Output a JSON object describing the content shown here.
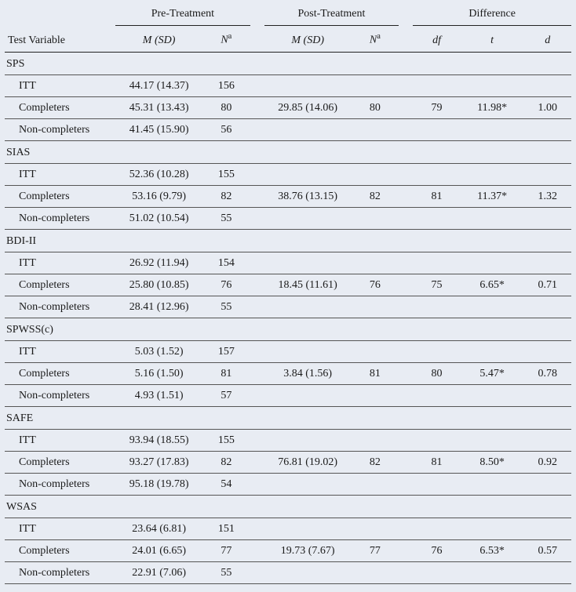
{
  "background_color": "#e8ecf3",
  "text_color": "#1a1a1a",
  "border_color": "#222222",
  "row_border_color": "#555555",
  "font_family": "Times New Roman",
  "font_size_pt": 11,
  "headers": {
    "test_variable": "Test Variable",
    "pre_treatment": "Pre-Treatment",
    "post_treatment": "Post-Treatment",
    "difference": "Difference",
    "m_sd_html": "M (SD)",
    "n_sup": "N",
    "n_sup_a": "a",
    "df": "df",
    "t": "t",
    "d": "d"
  },
  "row_labels": {
    "ITT": "ITT",
    "Completers": "Completers",
    "NonCompleters": "Non-completers"
  },
  "sections": [
    {
      "name": "SPS",
      "rows": [
        {
          "label": "ITT",
          "pre_msd": "44.17 (14.37)",
          "pre_n": "156",
          "post_msd": "",
          "post_n": "",
          "df": "",
          "t": "",
          "d": ""
        },
        {
          "label": "Completers",
          "pre_msd": "45.31 (13.43)",
          "pre_n": "80",
          "post_msd": "29.85 (14.06)",
          "post_n": "80",
          "df": "79",
          "t": "11.98*",
          "d": "1.00"
        },
        {
          "label": "NonCompleters",
          "pre_msd": "41.45 (15.90)",
          "pre_n": "56",
          "post_msd": "",
          "post_n": "",
          "df": "",
          "t": "",
          "d": ""
        }
      ]
    },
    {
      "name": "SIAS",
      "rows": [
        {
          "label": "ITT",
          "pre_msd": "52.36 (10.28)",
          "pre_n": "155",
          "post_msd": "",
          "post_n": "",
          "df": "",
          "t": "",
          "d": ""
        },
        {
          "label": "Completers",
          "pre_msd": "53.16 (9.79)",
          "pre_n": "82",
          "post_msd": "38.76 (13.15)",
          "post_n": "82",
          "df": "81",
          "t": "11.37*",
          "d": "1.32"
        },
        {
          "label": "NonCompleters",
          "pre_msd": "51.02 (10.54)",
          "pre_n": "55",
          "post_msd": "",
          "post_n": "",
          "df": "",
          "t": "",
          "d": ""
        }
      ]
    },
    {
      "name": "BDI-II",
      "rows": [
        {
          "label": "ITT",
          "pre_msd": "26.92 (11.94)",
          "pre_n": "154",
          "post_msd": "",
          "post_n": "",
          "df": "",
          "t": "",
          "d": ""
        },
        {
          "label": "Completers",
          "pre_msd": "25.80 (10.85)",
          "pre_n": "76",
          "post_msd": "18.45 (11.61)",
          "post_n": "76",
          "df": "75",
          "t": "6.65*",
          "d": "0.71"
        },
        {
          "label": "NonCompleters",
          "pre_msd": "28.41 (12.96)",
          "pre_n": "55",
          "post_msd": "",
          "post_n": "",
          "df": "",
          "t": "",
          "d": ""
        }
      ]
    },
    {
      "name": "SPWSS(c)",
      "rows": [
        {
          "label": "ITT",
          "pre_msd": "5.03 (1.52)",
          "pre_n": "157",
          "post_msd": "",
          "post_n": "",
          "df": "",
          "t": "",
          "d": ""
        },
        {
          "label": "Completers",
          "pre_msd": "5.16 (1.50)",
          "pre_n": "81",
          "post_msd": "3.84 (1.56)",
          "post_n": "81",
          "df": "80",
          "t": "5.47*",
          "d": "0.78"
        },
        {
          "label": "NonCompleters",
          "pre_msd": "4.93 (1.51)",
          "pre_n": "57",
          "post_msd": "",
          "post_n": "",
          "df": "",
          "t": "",
          "d": ""
        }
      ]
    },
    {
      "name": "SAFE",
      "rows": [
        {
          "label": "ITT",
          "pre_msd": "93.94 (18.55)",
          "pre_n": "155",
          "post_msd": "",
          "post_n": "",
          "df": "",
          "t": "",
          "d": ""
        },
        {
          "label": "Completers",
          "pre_msd": "93.27 (17.83)",
          "pre_n": "82",
          "post_msd": "76.81 (19.02)",
          "post_n": "82",
          "df": "81",
          "t": "8.50*",
          "d": "0.92"
        },
        {
          "label": "NonCompleters",
          "pre_msd": "95.18 (19.78)",
          "pre_n": "54",
          "post_msd": "",
          "post_n": "",
          "df": "",
          "t": "",
          "d": ""
        }
      ]
    },
    {
      "name": "WSAS",
      "rows": [
        {
          "label": "ITT",
          "pre_msd": "23.64 (6.81)",
          "pre_n": "151",
          "post_msd": "",
          "post_n": "",
          "df": "",
          "t": "",
          "d": ""
        },
        {
          "label": "Completers",
          "pre_msd": "24.01 (6.65)",
          "pre_n": "77",
          "post_msd": "19.73 (7.67)",
          "post_n": "77",
          "df": "76",
          "t": "6.53*",
          "d": "0.57"
        },
        {
          "label": "NonCompleters",
          "pre_msd": "22.91 (7.06)",
          "pre_n": "55",
          "post_msd": "",
          "post_n": "",
          "df": "",
          "t": "",
          "d": ""
        }
      ]
    }
  ]
}
